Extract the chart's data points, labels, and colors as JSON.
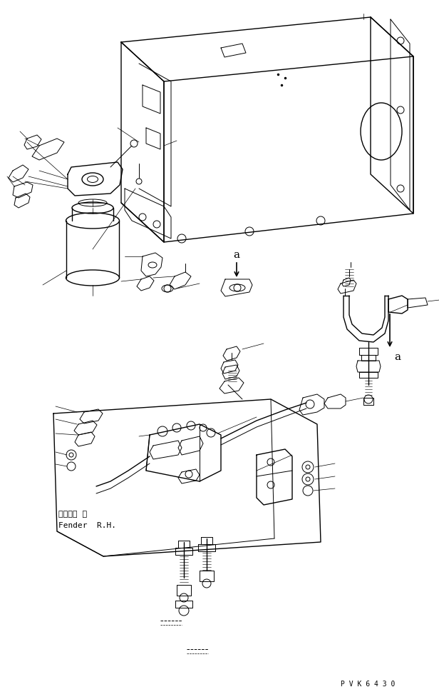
{
  "figsize": [
    6.16,
    9.7
  ],
  "dpi": 100,
  "bg_color": "#ffffff",
  "line_color": "#000000",
  "text_color": "#000000",
  "part_number": "P V K 6 4 3 0",
  "label_fender_jp": "フェンダ  右",
  "label_fender_en": "Fender  R.H.",
  "label_a": "a",
  "lw_main": 1.0,
  "lw_med": 0.7,
  "lw_thin": 0.5
}
